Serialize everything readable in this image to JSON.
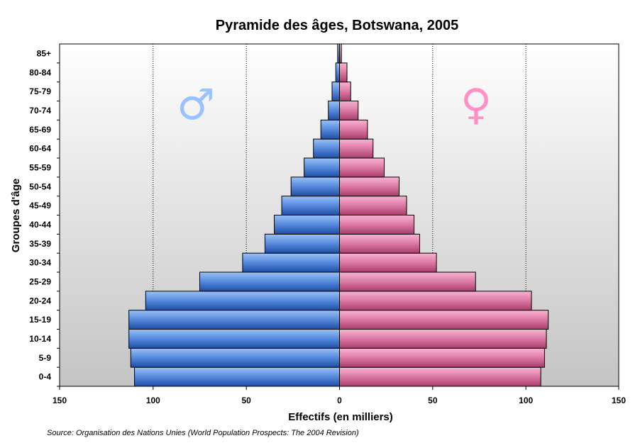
{
  "chart_data": {
    "type": "bar",
    "orientation": "horizontal-pyramid",
    "title": "Pyramide des âges, Botswana, 2005",
    "xlabel": "Effectifs (en milliers)",
    "ylabel": "Groupes d'âge",
    "xlim": [
      -150,
      150
    ],
    "xticks": [
      -150,
      -100,
      -50,
      0,
      50,
      100,
      150
    ],
    "xtick_labels": [
      "150",
      "100",
      "50",
      "0",
      "50",
      "100",
      "150"
    ],
    "gridlines_at": [
      -100,
      -50,
      50,
      100
    ],
    "categories": [
      "0-4",
      "5-9",
      "10-14",
      "15-19",
      "20-24",
      "25-29",
      "30-34",
      "35-39",
      "40-44",
      "45-49",
      "50-54",
      "55-59",
      "60-64",
      "65-69",
      "70-74",
      "75-79",
      "80-84",
      "85+"
    ],
    "series": [
      {
        "side": "left",
        "color": "#5b8fe0",
        "values": [
          110,
          112,
          113,
          113,
          104,
          75,
          52,
          40,
          35,
          31,
          26,
          19,
          14,
          10,
          6,
          4,
          2,
          1
        ]
      },
      {
        "side": "right",
        "color": "#e07fa9",
        "values": [
          108,
          110,
          111,
          112,
          103,
          73,
          52,
          43,
          40,
          36,
          32,
          24,
          18,
          15,
          10,
          6,
          4,
          1
        ]
      }
    ],
    "male_symbol": "♂",
    "female_symbol": "♀",
    "male_symbol_color": "#99c2ff",
    "female_symbol_color": "#ff8fc4",
    "source": "Source: Organisation des Nations Unies (World Population Prospects: The 2004 Revision)"
  }
}
